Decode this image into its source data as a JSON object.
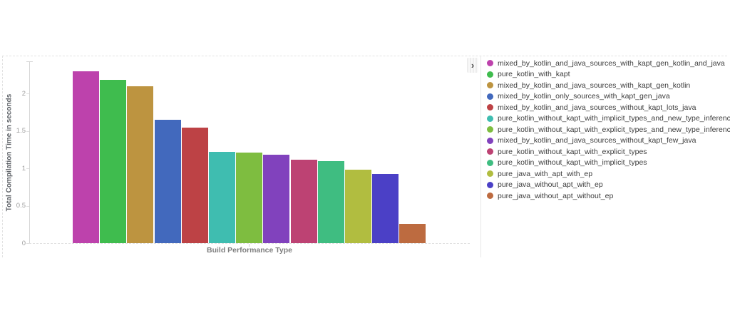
{
  "chart_data": {
    "type": "bar",
    "title": "",
    "xlabel": "Build Performance Type",
    "ylabel": "Total Compilation Time in seconds",
    "ylim": [
      0,
      2.43
    ],
    "yticks": [
      0,
      0.5,
      1,
      1.5,
      2
    ],
    "grid": false,
    "legend_position": "right",
    "categories": [
      "mixed_by_kotlin_and_java_sources_with_kapt_gen_kotlin_and_java",
      "pure_kotlin_with_kapt",
      "mixed_by_kotlin_and_java_sources_with_kapt_gen_kotlin",
      "mixed_by_kotlin_only_sources_with_kapt_gen_java",
      "mixed_by_kotlin_and_java_sources_without_kapt_lots_java",
      "pure_kotlin_without_kapt_with_implicit_types_and_new_type_inference",
      "pure_kotlin_without_kapt_with_explicit_types_and_new_type_inference",
      "mixed_by_kotlin_and_java_sources_without_kapt_few_java",
      "pure_kotlin_without_kapt_with_explicit_types",
      "pure_kotlin_without_kapt_with_implicit_types",
      "pure_java_with_apt_with_ep",
      "pure_java_without_apt_with_ep",
      "pure_java_without_apt_without_ep"
    ],
    "values": [
      2.3,
      2.18,
      2.1,
      1.65,
      1.54,
      1.22,
      1.21,
      1.18,
      1.11,
      1.1,
      0.98,
      0.92,
      0.26
    ],
    "colors": [
      "#bd42ac",
      "#3fbc4e",
      "#bd9440",
      "#4269bd",
      "#bd4245",
      "#3fbdb0",
      "#7ebd40",
      "#8142bd",
      "#bd4273",
      "#3fbd81",
      "#b1bd40",
      "#4b40c6",
      "#bd6b40"
    ]
  },
  "legend": {
    "toggle_icon": "›"
  }
}
